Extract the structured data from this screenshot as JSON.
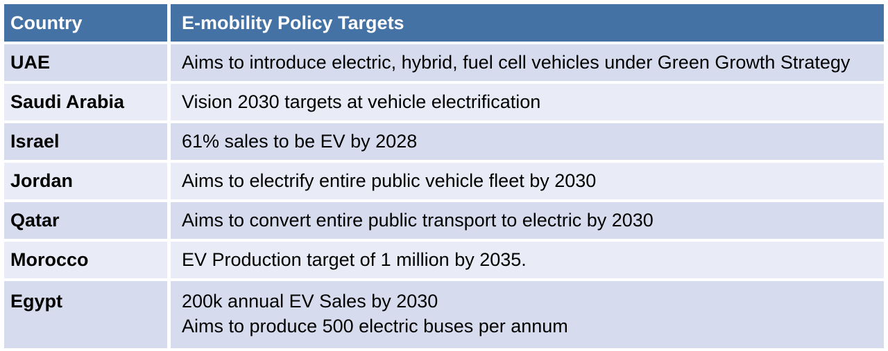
{
  "table": {
    "headers": {
      "country": "Country",
      "targets": "E-mobility Policy Targets"
    },
    "rows": [
      {
        "country": "UAE",
        "targets": [
          "Aims to introduce electric, hybrid, fuel cell vehicles under Green Growth Strategy"
        ]
      },
      {
        "country": "Saudi Arabia",
        "targets": [
          "Vision 2030 targets at vehicle electrification"
        ]
      },
      {
        "country": "Israel",
        "targets": [
          "61% sales to be EV by 2028"
        ]
      },
      {
        "country": "Jordan",
        "targets": [
          "Aims to electrify entire public vehicle fleet by 2030"
        ]
      },
      {
        "country": "Qatar",
        "targets": [
          "Aims to convert entire public transport to electric by 2030"
        ]
      },
      {
        "country": "Morocco",
        "targets": [
          "EV Production target of 1 million by 2035."
        ]
      },
      {
        "country": "Egypt",
        "targets": [
          "200k annual EV Sales by 2030",
          "Aims to produce 500 electric buses per annum"
        ]
      }
    ]
  },
  "colors": {
    "header_background": "#4472a4",
    "row_band_dark": "#d6dcee",
    "row_band_light": "#e9ecf6"
  }
}
